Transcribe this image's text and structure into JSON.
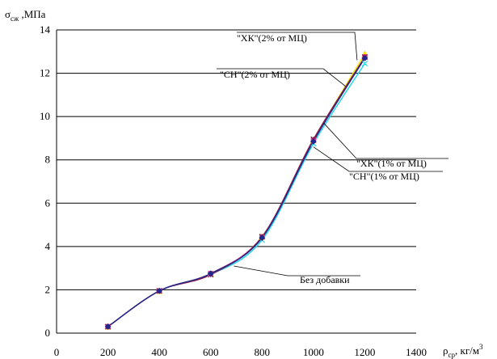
{
  "chart_data": {
    "type": "line",
    "title": "",
    "ylabel": {
      "main": "σ",
      "sub": "сж",
      "suffix": " ,МПа"
    },
    "xlabel": {
      "main": "ρ",
      "sub": "ср",
      "suffix": ", кг/м",
      "sup": "3"
    },
    "xlim": [
      0,
      1400
    ],
    "ylim": [
      0,
      14
    ],
    "x_ticks": [
      0,
      200,
      400,
      600,
      800,
      1000,
      1200,
      1400
    ],
    "y_ticks": [
      0,
      2,
      4,
      6,
      8,
      10,
      12,
      14
    ],
    "grid": "horizontal",
    "legend": "none",
    "x": [
      200,
      400,
      600,
      800,
      1000,
      1200
    ],
    "series": [
      {
        "name": "Без добавки",
        "color": "#1f2a8c",
        "marker": "diamond",
        "values": [
          0.3,
          1.95,
          2.75,
          4.4,
          8.85,
          12.7
        ]
      },
      {
        "name": "\"СН\"(1% от МЦ)",
        "color": "#d62fa0",
        "marker": "square",
        "values": [
          0.3,
          1.95,
          2.75,
          4.45,
          8.9,
          12.75
        ]
      },
      {
        "name": "\"ХК\"(1% от МЦ)",
        "color": "#f2e600",
        "marker": "triangle",
        "values": [
          0.3,
          1.95,
          2.75,
          4.45,
          8.9,
          12.9
        ]
      },
      {
        "name": "\"СН\"(2% от МЦ)",
        "color": "#22d6e6",
        "marker": "x",
        "values": [
          0.3,
          1.95,
          2.7,
          4.3,
          8.75,
          12.45
        ]
      },
      {
        "name": "\"ХК\"(2% от МЦ)",
        "color": "#8a1a4a",
        "marker": "star",
        "values": [
          0.3,
          1.95,
          2.7,
          4.45,
          8.95,
          12.75
        ]
      }
    ],
    "annotations": [
      {
        "text": "\"ХК\"(2% от МЦ)",
        "series": 4
      },
      {
        "text": "\"СН\"(2% от МЦ)",
        "series": 3
      },
      {
        "text": "\"ХК\"(1% от МЦ)",
        "series": 2
      },
      {
        "text": "\"СН\"(1% от МЦ)",
        "series": 1
      },
      {
        "text": "Без добавки",
        "series": 0
      }
    ]
  }
}
